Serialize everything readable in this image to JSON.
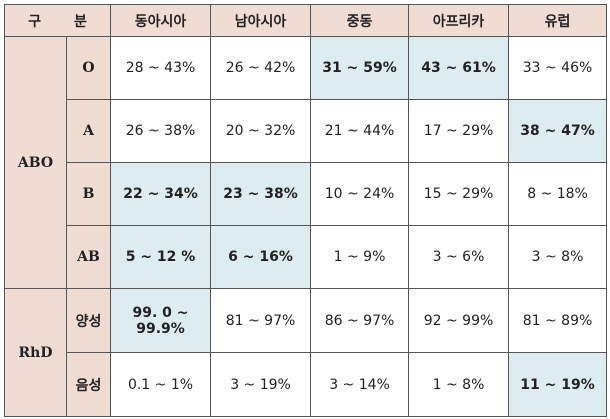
{
  "header": {
    "corner": "구 분",
    "regions": [
      "동아시아",
      "남아시아",
      "중동",
      "아프리카",
      "유럽"
    ]
  },
  "groups": [
    {
      "name": "ABO",
      "rows": [
        {
          "type": "O",
          "values": [
            "28 ~ 43%",
            "26 ~ 42%",
            "31 ~ 59%",
            "43 ~ 61%",
            "33 ~ 46%"
          ],
          "highlight": [
            false,
            false,
            true,
            true,
            false
          ]
        },
        {
          "type": "A",
          "values": [
            "26 ~ 38%",
            "20 ~ 32%",
            "21 ~ 44%",
            "17 ~ 29%",
            "38 ~ 47%"
          ],
          "highlight": [
            false,
            false,
            false,
            false,
            true
          ]
        },
        {
          "type": "B",
          "values": [
            "22 ~ 34%",
            "23 ~ 38%",
            "10 ~ 24%",
            "15 ~ 29%",
            "8 ~ 18%"
          ],
          "highlight": [
            true,
            true,
            false,
            false,
            false
          ]
        },
        {
          "type": "AB",
          "values": [
            "5 ~ 12 %",
            "6 ~ 16%",
            "1 ~ 9%",
            "3 ~ 6%",
            "3 ~ 8%"
          ],
          "highlight": [
            true,
            true,
            false,
            false,
            false
          ]
        }
      ]
    },
    {
      "name": "RhD",
      "rows": [
        {
          "type": "양성",
          "values": [
            "99. 0 ~ 99.9%",
            "81 ~ 97%",
            "86 ~ 97%",
            "92 ~ 99%",
            "81 ~ 89%"
          ],
          "highlight": [
            true,
            false,
            false,
            false,
            false
          ]
        },
        {
          "type": "음성",
          "values": [
            "0.1 ~ 1%",
            "3 ~ 19%",
            "3 ~ 14%",
            "1 ~ 8%",
            "11 ~ 19%"
          ],
          "highlight": [
            false,
            false,
            false,
            false,
            true
          ]
        }
      ]
    }
  ],
  "colors": {
    "header_bg": "#f1dcd4",
    "highlight_bg": "#dcecf1",
    "border": "#555555"
  }
}
